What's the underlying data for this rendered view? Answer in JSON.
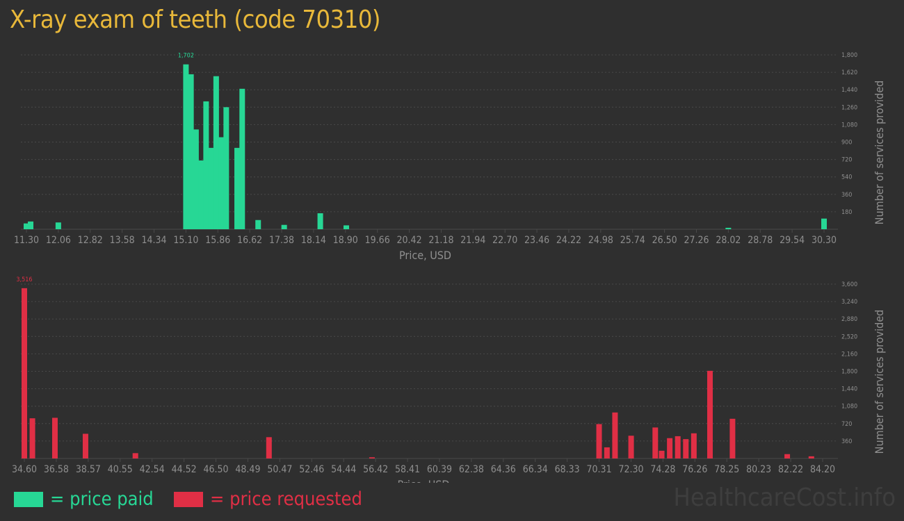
{
  "title": "X-ray exam of teeth (code 70310)",
  "colors": {
    "paid": "#27d795",
    "requested": "#e02f45",
    "title": "#e8b83a",
    "axis_text": "#8f8f8f",
    "grid": "#4a4a4a"
  },
  "legend": {
    "paid_label": "= price paid",
    "requested_label": "= price requested"
  },
  "watermark": "HealthcareCost.info",
  "chart_data": [
    {
      "type": "bar",
      "name": "price paid",
      "xlabel": "Price, USD",
      "ylabel": "Number of services provided",
      "x_ticks": [
        "11.30",
        "12.06",
        "12.82",
        "13.58",
        "14.34",
        "15.10",
        "15.86",
        "16.62",
        "17.38",
        "18.14",
        "18.90",
        "19.66",
        "20.42",
        "21.18",
        "21.94",
        "22.70",
        "23.46",
        "24.22",
        "24.98",
        "25.74",
        "26.50",
        "27.26",
        "28.02",
        "28.78",
        "29.54",
        "30.30"
      ],
      "y_ticks": [
        "180",
        "360",
        "540",
        "720",
        "900",
        "1,080",
        "1,260",
        "1,440",
        "1,620",
        "1,800"
      ],
      "ylim": [
        0,
        1800
      ],
      "xlim": [
        11.3,
        30.3
      ],
      "peak_label": "1,702",
      "bars": [
        {
          "x": 11.3,
          "y": 60
        },
        {
          "x": 11.4,
          "y": 80
        },
        {
          "x": 12.06,
          "y": 70
        },
        {
          "x": 15.1,
          "y": 1702
        },
        {
          "x": 15.22,
          "y": 1600
        },
        {
          "x": 15.34,
          "y": 1030
        },
        {
          "x": 15.46,
          "y": 710
        },
        {
          "x": 15.58,
          "y": 1320
        },
        {
          "x": 15.7,
          "y": 840
        },
        {
          "x": 15.82,
          "y": 1580
        },
        {
          "x": 15.94,
          "y": 950
        },
        {
          "x": 16.06,
          "y": 1260
        },
        {
          "x": 16.32,
          "y": 840
        },
        {
          "x": 16.44,
          "y": 1450
        },
        {
          "x": 16.82,
          "y": 95
        },
        {
          "x": 17.44,
          "y": 45
        },
        {
          "x": 18.3,
          "y": 165
        },
        {
          "x": 18.92,
          "y": 40
        },
        {
          "x": 28.02,
          "y": 15
        },
        {
          "x": 30.3,
          "y": 110
        }
      ]
    },
    {
      "type": "bar",
      "name": "price requested",
      "xlabel": "Price, USD",
      "ylabel": "Number of services provided",
      "x_ticks": [
        "34.60",
        "36.58",
        "38.57",
        "40.55",
        "42.54",
        "44.52",
        "46.50",
        "48.49",
        "50.47",
        "52.46",
        "54.44",
        "56.42",
        "58.41",
        "60.39",
        "62.38",
        "64.36",
        "66.34",
        "68.33",
        "70.31",
        "72.30",
        "74.28",
        "76.26",
        "78.25",
        "80.23",
        "82.22",
        "84.20"
      ],
      "y_ticks": [
        "360",
        "720",
        "1,080",
        "1,440",
        "1,800",
        "2,160",
        "2,520",
        "2,880",
        "3,240",
        "3,600"
      ],
      "ylim": [
        0,
        3600
      ],
      "xlim": [
        34.6,
        84.2
      ],
      "peak_label": "3,516",
      "bars": [
        {
          "x": 34.6,
          "y": 3516
        },
        {
          "x": 35.1,
          "y": 830
        },
        {
          "x": 36.5,
          "y": 840
        },
        {
          "x": 38.4,
          "y": 510
        },
        {
          "x": 41.5,
          "y": 110
        },
        {
          "x": 49.8,
          "y": 440
        },
        {
          "x": 56.2,
          "y": 25
        },
        {
          "x": 70.31,
          "y": 710
        },
        {
          "x": 70.8,
          "y": 230
        },
        {
          "x": 71.3,
          "y": 950
        },
        {
          "x": 72.3,
          "y": 470
        },
        {
          "x": 73.8,
          "y": 640
        },
        {
          "x": 74.2,
          "y": 160
        },
        {
          "x": 74.7,
          "y": 420
        },
        {
          "x": 75.2,
          "y": 460
        },
        {
          "x": 75.7,
          "y": 400
        },
        {
          "x": 76.2,
          "y": 520
        },
        {
          "x": 77.2,
          "y": 1810
        },
        {
          "x": 78.6,
          "y": 820
        },
        {
          "x": 82.0,
          "y": 90
        },
        {
          "x": 83.5,
          "y": 45
        }
      ]
    }
  ]
}
